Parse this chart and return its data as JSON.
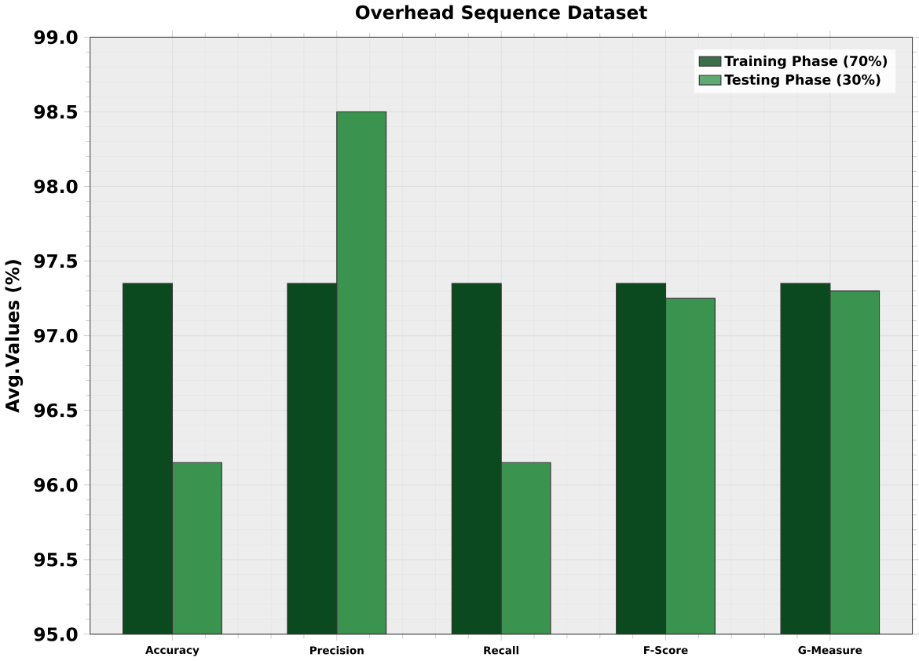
{
  "chart_data": {
    "type": "bar",
    "title": "Overhead Sequence Dataset",
    "ylabel": "Avg.Values (%)",
    "categories": [
      "Accuracy",
      "Precision",
      "Recall",
      "F-Score",
      "G-Measure"
    ],
    "series": [
      {
        "name": "Training Phase (70%)",
        "color": "#0b4a1e",
        "values": [
          97.35,
          97.35,
          97.35,
          97.35,
          97.35
        ]
      },
      {
        "name": "Testing Phase (30%)",
        "color": "#3a9450",
        "values": [
          96.15,
          98.5,
          96.15,
          97.25,
          97.3
        ]
      }
    ],
    "ylim": [
      95.0,
      99.0
    ],
    "yticks": [
      {
        "value": 95.0,
        "label": "95.0"
      },
      {
        "value": 95.5,
        "label": "95.5"
      },
      {
        "value": 96.0,
        "label": "96.0"
      },
      {
        "value": 96.5,
        "label": "96.5"
      },
      {
        "value": 97.0,
        "label": "97.0"
      },
      {
        "value": 97.5,
        "label": "97.5"
      },
      {
        "value": 98.0,
        "label": "98.0"
      },
      {
        "value": 98.5,
        "label": "98.5"
      },
      {
        "value": 99.0,
        "label": "99.0"
      }
    ],
    "grid": true,
    "legend": "top right"
  }
}
